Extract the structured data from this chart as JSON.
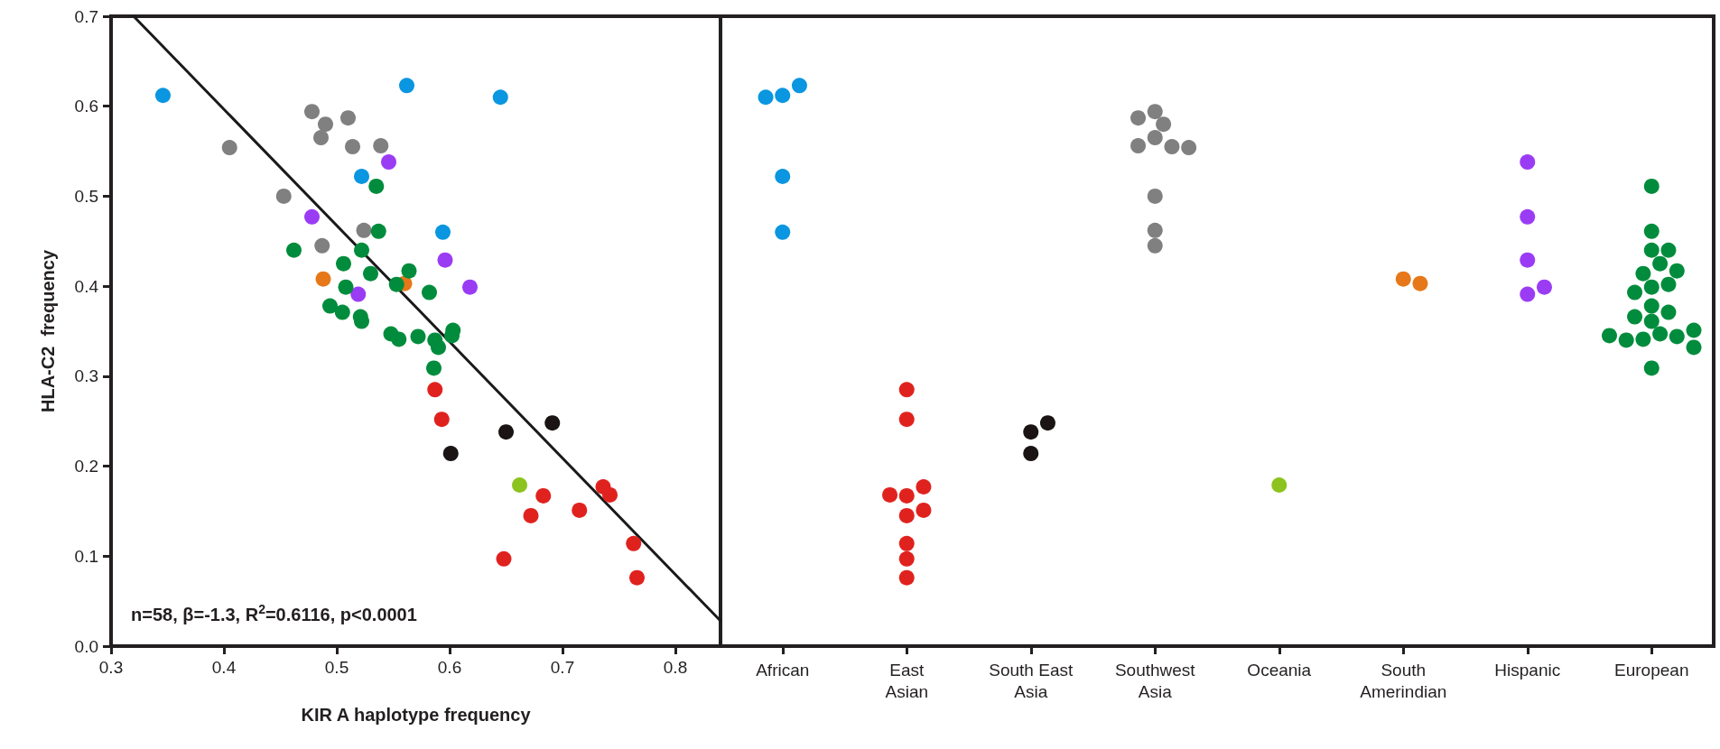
{
  "chart_data": [
    {
      "type": "scatter",
      "xlabel": "KIR A haplotype frequency",
      "ylabel": "HLA-C2  frequency",
      "xlim": [
        0.3,
        0.84
      ],
      "ylim": [
        0,
        0.7
      ],
      "xticks": [
        0.3,
        0.4,
        0.5,
        0.6,
        0.7,
        0.8
      ],
      "yticks": [
        {
          "value": 0,
          "label": "0.0"
        },
        {
          "value": 0.1,
          "label": "0.1"
        },
        {
          "value": 0.2,
          "label": "0.2"
        },
        {
          "value": 0.3,
          "label": "0.3"
        },
        {
          "value": 0.4,
          "label": "0.4"
        },
        {
          "value": 0.5,
          "label": "0.5"
        },
        {
          "value": 0.6,
          "label": "0.6"
        },
        {
          "value": 0.7,
          "label": "0.7"
        }
      ],
      "marker": "circle",
      "grid": false,
      "annotations": [
        "n=58, β=-1.3, R$^{2}$=0.6116, p<0.0001"
      ],
      "series": [
        {
          "color": "#0a96e0",
          "x": [
            0.346,
            0.562,
            0.645,
            0.522,
            0.594
          ],
          "values": [
            0.612,
            0.623,
            0.61,
            0.522,
            0.46
          ]
        },
        {
          "color": "#808080",
          "x": [
            0.478,
            0.49,
            0.486,
            0.51,
            0.514,
            0.539,
            0.405,
            0.453,
            0.524,
            0.487
          ],
          "values": [
            0.594,
            0.58,
            0.565,
            0.587,
            0.555,
            0.556,
            0.554,
            0.5,
            0.462,
            0.445
          ]
        },
        {
          "color": "#9b3cf5",
          "x": [
            0.546,
            0.478,
            0.596,
            0.519,
            0.618
          ],
          "values": [
            0.538,
            0.477,
            0.429,
            0.391,
            0.399
          ]
        },
        {
          "color": "#e67819",
          "x": [
            0.488,
            0.56
          ],
          "values": [
            0.408,
            0.403
          ]
        },
        {
          "color": "#008c3c",
          "x": [
            0.535,
            0.537,
            0.462,
            0.522,
            0.506,
            0.53,
            0.564,
            0.508,
            0.553,
            0.582,
            0.494,
            0.505,
            0.521,
            0.522,
            0.548,
            0.555,
            0.572,
            0.587,
            0.59,
            0.603,
            0.602,
            0.586
          ],
          "values": [
            0.511,
            0.461,
            0.44,
            0.44,
            0.425,
            0.414,
            0.417,
            0.399,
            0.402,
            0.393,
            0.378,
            0.371,
            0.366,
            0.361,
            0.347,
            0.341,
            0.344,
            0.34,
            0.332,
            0.351,
            0.345,
            0.309
          ]
        },
        {
          "color": "#e0221e",
          "x": [
            0.587,
            0.593,
            0.648,
            0.672,
            0.683,
            0.715,
            0.736,
            0.742,
            0.763,
            0.766
          ],
          "values": [
            0.285,
            0.252,
            0.097,
            0.145,
            0.167,
            0.151,
            0.177,
            0.168,
            0.114,
            0.076
          ]
        },
        {
          "color": "#1a1414",
          "x": [
            0.601,
            0.65,
            0.691
          ],
          "values": [
            0.214,
            0.238,
            0.248
          ]
        },
        {
          "color": "#8cc31e",
          "x": [
            0.662
          ],
          "values": [
            0.179
          ]
        },
        {
          "type": "line",
          "color": "#1a1a1a",
          "marker": "none",
          "x": [
            0.32,
            0.84
          ],
          "values": [
            0.7,
            0.028
          ]
        }
      ]
    },
    {
      "type": "scatter",
      "categories": [
        "African",
        "East Asian",
        "South East Asia",
        "Southwest Asia",
        "Oceania",
        "South Amerindian",
        "Hispanic",
        "European"
      ],
      "ylim": [
        0,
        0.7
      ],
      "tick_labels": "x",
      "marker": "circle",
      "grid": false,
      "series": [
        {
          "color": "#0a96e0",
          "x": [
            "African",
            "African",
            "African",
            "African",
            "African"
          ],
          "values": [
            0.612,
            0.623,
            0.61,
            0.522,
            0.46
          ]
        },
        {
          "color": "#e0221e",
          "x": [
            "East Asian",
            "East Asian",
            "East Asian",
            "East Asian",
            "East Asian",
            "East Asian",
            "East Asian",
            "East Asian",
            "East Asian",
            "East Asian"
          ],
          "values": [
            0.285,
            0.252,
            0.097,
            0.145,
            0.167,
            0.151,
            0.177,
            0.168,
            0.114,
            0.076
          ]
        },
        {
          "color": "#1a1414",
          "x": [
            "South East Asia",
            "South East Asia",
            "South East Asia"
          ],
          "values": [
            0.214,
            0.238,
            0.248
          ]
        },
        {
          "color": "#808080",
          "x": [
            "Southwest Asia",
            "Southwest Asia",
            "Southwest Asia",
            "Southwest Asia",
            "Southwest Asia",
            "Southwest Asia",
            "Southwest Asia",
            "Southwest Asia",
            "Southwest Asia",
            "Southwest Asia"
          ],
          "values": [
            0.594,
            0.58,
            0.565,
            0.587,
            0.555,
            0.556,
            0.554,
            0.5,
            0.462,
            0.445
          ]
        },
        {
          "color": "#8cc31e",
          "x": [
            "Oceania"
          ],
          "values": [
            0.179
          ]
        },
        {
          "color": "#e67819",
          "x": [
            "South Amerindian",
            "South Amerindian"
          ],
          "values": [
            0.408,
            0.403
          ]
        },
        {
          "color": "#9b3cf5",
          "x": [
            "Hispanic",
            "Hispanic",
            "Hispanic",
            "Hispanic",
            "Hispanic"
          ],
          "values": [
            0.538,
            0.477,
            0.429,
            0.391,
            0.399
          ]
        },
        {
          "color": "#008c3c",
          "x": [
            "European",
            "European",
            "European",
            "European",
            "European",
            "European",
            "European",
            "European",
            "European",
            "European",
            "European",
            "European",
            "European",
            "European",
            "European",
            "European",
            "European",
            "European",
            "European",
            "European",
            "European",
            "European"
          ],
          "values": [
            0.511,
            0.461,
            0.44,
            0.44,
            0.425,
            0.414,
            0.417,
            0.399,
            0.402,
            0.393,
            0.378,
            0.371,
            0.366,
            0.361,
            0.347,
            0.341,
            0.344,
            0.34,
            0.332,
            0.351,
            0.345,
            0.309
          ]
        }
      ]
    }
  ]
}
